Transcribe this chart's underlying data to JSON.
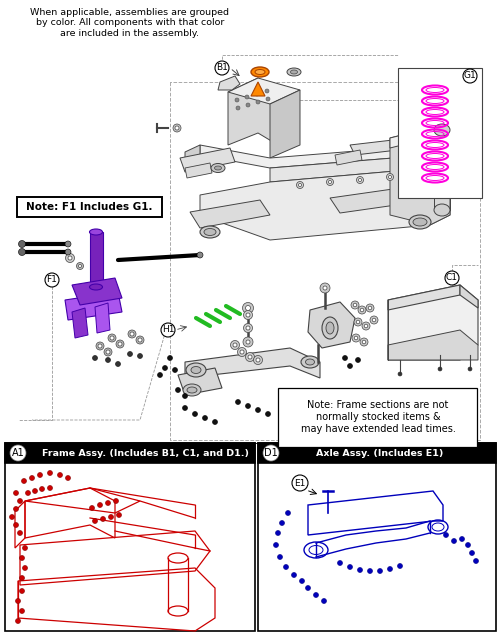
{
  "bg_color": "#ffffff",
  "header_text": "When applicable, assemblies are grouped\nby color. All components with that color\nare included in the assembly.",
  "note_f1": "Note: F1 Includes G1.",
  "note_frame": "Note: Frame sections are not\nnormally stocked items &\nmay have extended lead times.",
  "box_A1_title": "Frame Assy. (Includes B1, C1, and D1.)",
  "box_D1_title": "Axle Assy. (Includes E1)",
  "orange_color": "#FF8800",
  "purple_color": "#8833CC",
  "purple_light": "#AA55EE",
  "green_color": "#22BB22",
  "magenta_color": "#FF00DD",
  "red_color": "#CC0000",
  "blue_color": "#0000BB",
  "black_color": "#111111",
  "frame_color": "#444444",
  "gray_color": "#888888",
  "light_gray": "#E8E8E8",
  "mid_gray": "#CCCCCC"
}
